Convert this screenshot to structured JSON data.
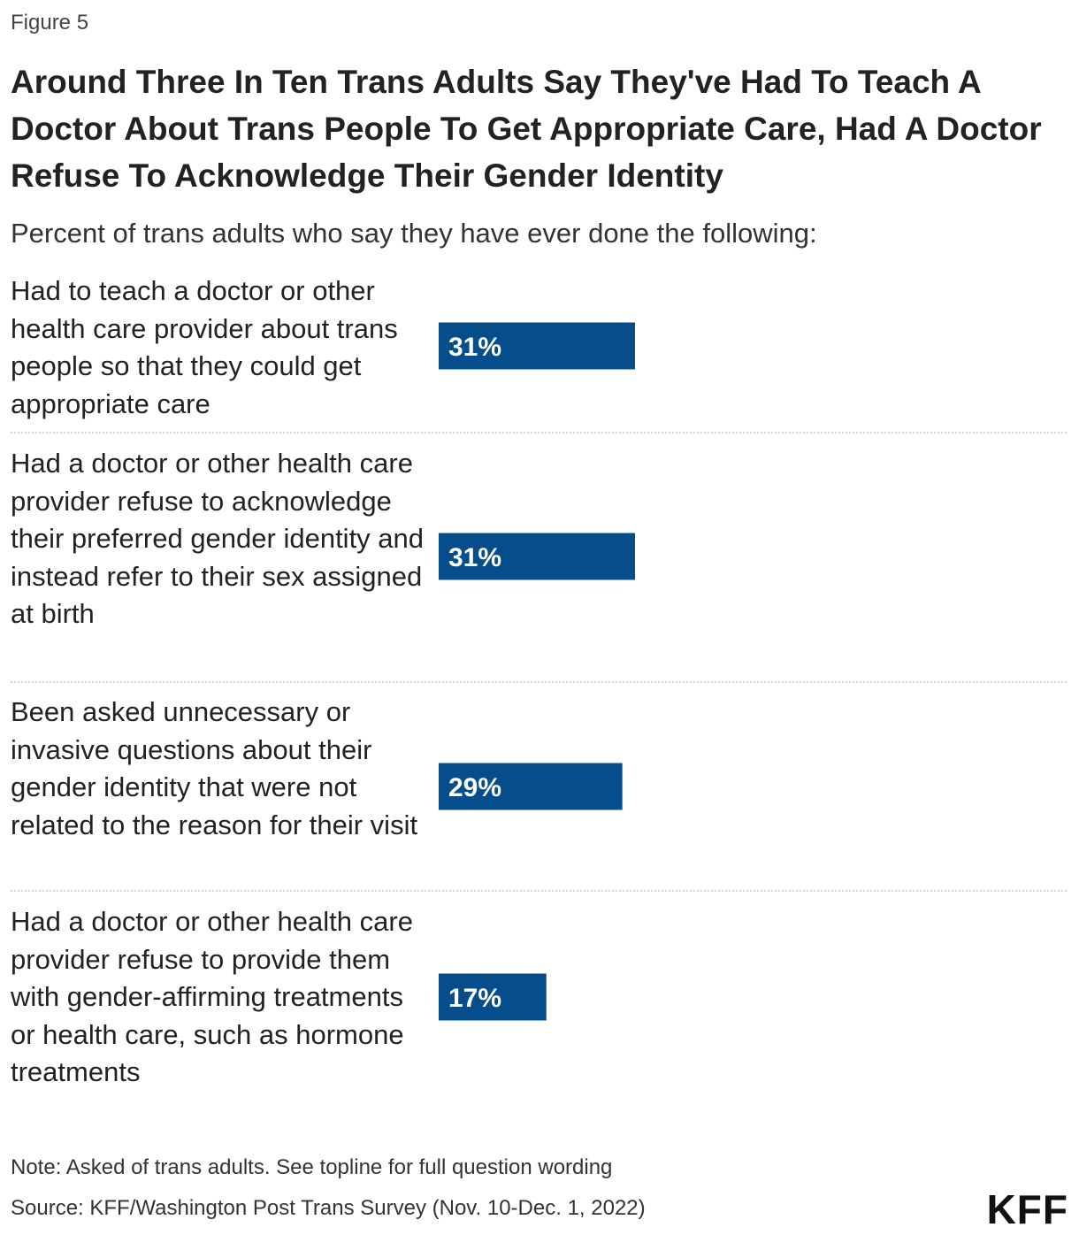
{
  "figure_label": "Figure 5",
  "chart_data": {
    "type": "bar",
    "orientation": "horizontal",
    "title": "Around Three In Ten Trans Adults Say They've Had To Teach A Doctor About Trans People To Get Appropriate Care, Had A Doctor Refuse To Acknowledge Their Gender Identity",
    "subtitle": "Percent of trans adults who say they have ever done the following:",
    "categories": [
      "Had to teach a doctor or other health care provider about trans people so that they could get appropriate care",
      "Had a doctor or other health care provider refuse to acknowledge their preferred gender identity and instead refer to their sex assigned at birth",
      "Been asked unnecessary or invasive questions about their gender identity that were not related to the reason for their visit",
      "Had a doctor or other health care provider refuse to provide them with gender-affirming treatments or health care, such as hormone treatments"
    ],
    "values": [
      31,
      31,
      29,
      17
    ],
    "value_labels": [
      "31%",
      "31%",
      "29%",
      "17%"
    ],
    "unit": "%",
    "xlim": [
      0,
      100
    ],
    "bar_color": "#064e8b",
    "label_color": "#ffffff",
    "grid": false,
    "legend": "none"
  },
  "note": "Note: Asked of trans adults. See topline for full question wording",
  "source": "Source: KFF/Washington Post Trans Survey (Nov. 10-Dec. 1, 2022)",
  "logo_text": "KFF"
}
